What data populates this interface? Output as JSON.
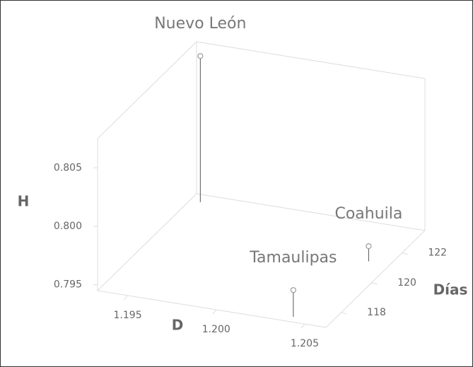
{
  "chart_data": {
    "type": "scatter3d",
    "xlabel": "D",
    "ylabel": "Días",
    "zlabel": "H",
    "xlim": [
      1.1933,
      1.2062
    ],
    "xticks": [
      1.195,
      {
        "value": 1.2,
        "label": "1.200"
      },
      1.205
    ],
    "ylim": [
      117,
      123.5
    ],
    "yticks": [
      118,
      120,
      122
    ],
    "zlim": [
      0.7945,
      0.8075
    ],
    "zticks": [
      0.795,
      {
        "value": 0.8,
        "label": "0.800"
      },
      0.805
    ],
    "color": "#999999",
    "points": [
      {
        "label": "Nuevo León",
        "x": 1.1939,
        "y": 123.05,
        "z": 0.807
      },
      {
        "label": "Tamaulipas",
        "x": 1.2041,
        "y": 117.3,
        "z": 0.7968
      },
      {
        "label": "Coahuila",
        "x": 1.205,
        "y": 121.2,
        "z": 0.7958
      }
    ]
  }
}
